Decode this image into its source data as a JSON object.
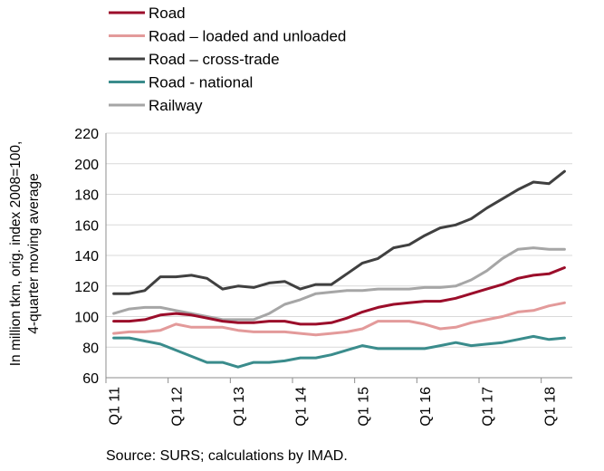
{
  "chart_data": {
    "type": "line",
    "ylabel_line1": "In million tkm, orig. index 2008=100,",
    "ylabel_line2": "4-quarter moving average",
    "ylim": [
      60,
      220
    ],
    "yticks": [
      60,
      80,
      100,
      120,
      140,
      160,
      180,
      200,
      220
    ],
    "grid": true,
    "legend_position": "top-left",
    "x_tick_labels": [
      "Q1 11",
      "Q1 12",
      "Q1 13",
      "Q1 14",
      "Q1 15",
      "Q1 16",
      "Q1 17",
      "Q1 18"
    ],
    "x_tick_every": 4,
    "source": "Source: SURS; calculations by IMAD.",
    "series": [
      {
        "name": "Road – cross-trade",
        "color": "#404040",
        "values": [
          115,
          115,
          117,
          126,
          126,
          127,
          125,
          118,
          120,
          119,
          122,
          123,
          118,
          121,
          121,
          128,
          135,
          138,
          145,
          147,
          153,
          158,
          160,
          164,
          171,
          177,
          183,
          188,
          187,
          195
        ]
      },
      {
        "name": "Railway",
        "color": "#a6a6a6",
        "values": [
          102,
          105,
          106,
          106,
          104,
          102,
          100,
          98,
          98,
          98,
          102,
          108,
          111,
          115,
          116,
          117,
          117,
          118,
          118,
          118,
          119,
          119,
          120,
          124,
          130,
          138,
          144,
          145,
          144,
          144
        ]
      },
      {
        "name": "Road – loaded and unloaded",
        "color": "#e39a9a",
        "values": [
          89,
          90,
          90,
          91,
          95,
          93,
          93,
          93,
          91,
          90,
          90,
          90,
          89,
          88,
          89,
          90,
          92,
          97,
          97,
          97,
          95,
          92,
          93,
          96,
          98,
          100,
          103,
          104,
          107,
          109
        ]
      },
      {
        "name": "Road - national",
        "color": "#3a8c8c",
        "values": [
          86,
          86,
          84,
          82,
          78,
          74,
          70,
          70,
          67,
          70,
          70,
          71,
          73,
          73,
          75,
          78,
          81,
          79,
          79,
          79,
          79,
          81,
          83,
          81,
          82,
          83,
          85,
          87,
          85,
          86
        ]
      },
      {
        "name": "Road",
        "color": "#9b0d2a",
        "values": [
          97,
          97,
          98,
          101,
          102,
          101,
          99,
          97,
          96,
          96,
          97,
          97,
          95,
          95,
          96,
          99,
          103,
          106,
          108,
          109,
          110,
          110,
          112,
          115,
          118,
          121,
          125,
          127,
          128,
          132
        ]
      }
    ],
    "legend_order": [
      "Road",
      "Road – loaded and unloaded",
      "Road – cross-trade",
      "Road - national",
      "Railway"
    ]
  }
}
